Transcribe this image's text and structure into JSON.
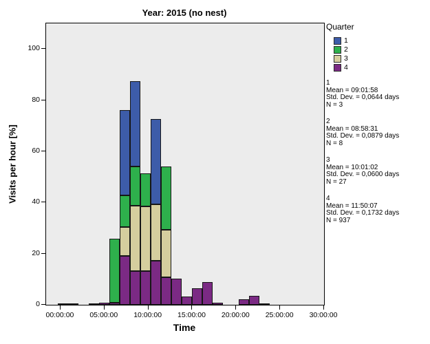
{
  "title": "Year: 2015 (no nest)",
  "axes": {
    "x": {
      "label": "Time",
      "tick_labels": [
        "00:00:00",
        "05:00:00",
        "10:00:00",
        "15:00:00",
        "20:00:00",
        "25:00:00",
        "30:00:00"
      ],
      "tick_hours": [
        0,
        5,
        10,
        15,
        20,
        25,
        30
      ],
      "range_hours": [
        -1.64,
        30.0
      ]
    },
    "y": {
      "label": "Visits per hour [%]",
      "ticks": [
        0,
        20,
        40,
        60,
        80,
        100
      ],
      "range": [
        0,
        110
      ]
    }
  },
  "legend": {
    "title": "Quarter",
    "entries": [
      {
        "label": "1",
        "color": "#3d5ca9"
      },
      {
        "label": "2",
        "color": "#2eb04c"
      },
      {
        "label": "3",
        "color": "#d5ce9e"
      },
      {
        "label": "4",
        "color": "#7b2a84"
      }
    ]
  },
  "stats": [
    {
      "group": "1",
      "lines": [
        "Mean = 09:01:58",
        "Std. Dev. = 0,0644 days",
        "N = 3"
      ]
    },
    {
      "group": "2",
      "lines": [
        "Mean = 08:58:31",
        "Std. Dev. = 0,0879 days",
        "N = 8"
      ]
    },
    {
      "group": "3",
      "lines": [
        "Mean = 10:01:02",
        "Std. Dev. = 0,0600 days",
        "N = 27"
      ]
    },
    {
      "group": "4",
      "lines": [
        "Mean = 11:50:07",
        "Std. Dev. = 0,1732 days",
        "N = 937"
      ]
    }
  ],
  "chart_data": {
    "type": "bar",
    "stacked": true,
    "title": "Year: 2015 (no nest)",
    "xlabel": "Time",
    "ylabel": "Visits per hour [%]",
    "x_unit": "hours",
    "xlim": [
      -1.64,
      30.0
    ],
    "ylim": [
      0,
      110
    ],
    "grid": false,
    "legend_position": "right",
    "series_order_bottom_to_top": [
      "q4",
      "q3",
      "q2",
      "q1"
    ],
    "series_names": {
      "q1": "Quarter 1",
      "q2": "Quarter 2",
      "q3": "Quarter 3",
      "q4": "Quarter 4"
    },
    "bars": [
      {
        "x0": -0.29,
        "x1": 0.88,
        "q4": 0.6
      },
      {
        "x0": 0.88,
        "x1": 2.05,
        "q4": 0.25
      },
      {
        "x0": 3.23,
        "x1": 4.4,
        "q4": 0.2
      },
      {
        "x0": 4.4,
        "x1": 5.57,
        "q4": 0.8
      },
      {
        "x0": 5.57,
        "x1": 6.74,
        "q4": 0.7,
        "q2": 25.0
      },
      {
        "x0": 6.74,
        "x1": 7.91,
        "q4": 19.1,
        "q3": 11.3,
        "q2": 12.5,
        "q1": 33.3
      },
      {
        "x0": 7.91,
        "x1": 9.09,
        "q4": 13.1,
        "q3": 25.6,
        "q2": 15.3,
        "q1": 33.4
      },
      {
        "x0": 9.09,
        "x1": 10.26,
        "q4": 13.1,
        "q3": 25.4,
        "q2": 12.8
      },
      {
        "x0": 10.26,
        "x1": 11.43,
        "q4": 17.3,
        "q3": 21.9,
        "q1": 33.4
      },
      {
        "x0": 11.43,
        "x1": 12.6,
        "q4": 10.9,
        "q3": 18.4,
        "q2": 24.7
      },
      {
        "x0": 12.6,
        "x1": 13.77,
        "q4": 10.2
      },
      {
        "x0": 13.77,
        "x1": 14.95,
        "q4": 3.2
      },
      {
        "x0": 14.95,
        "x1": 16.12,
        "q4": 6.5
      },
      {
        "x0": 16.12,
        "x1": 17.29,
        "q4": 9.0
      },
      {
        "x0": 17.29,
        "x1": 18.46,
        "q4": 0.7
      },
      {
        "x0": 20.29,
        "x1": 21.46,
        "q4": 2.1
      },
      {
        "x0": 21.46,
        "x1": 22.63,
        "q4": 3.4
      },
      {
        "x0": 22.63,
        "x1": 23.8,
        "q4": 0.5
      }
    ],
    "colors": {
      "q1": "#3d5ca9",
      "q2": "#2eb04c",
      "q3": "#d5ce9e",
      "q4": "#7b2a84"
    },
    "plot_background": "#ececec"
  }
}
